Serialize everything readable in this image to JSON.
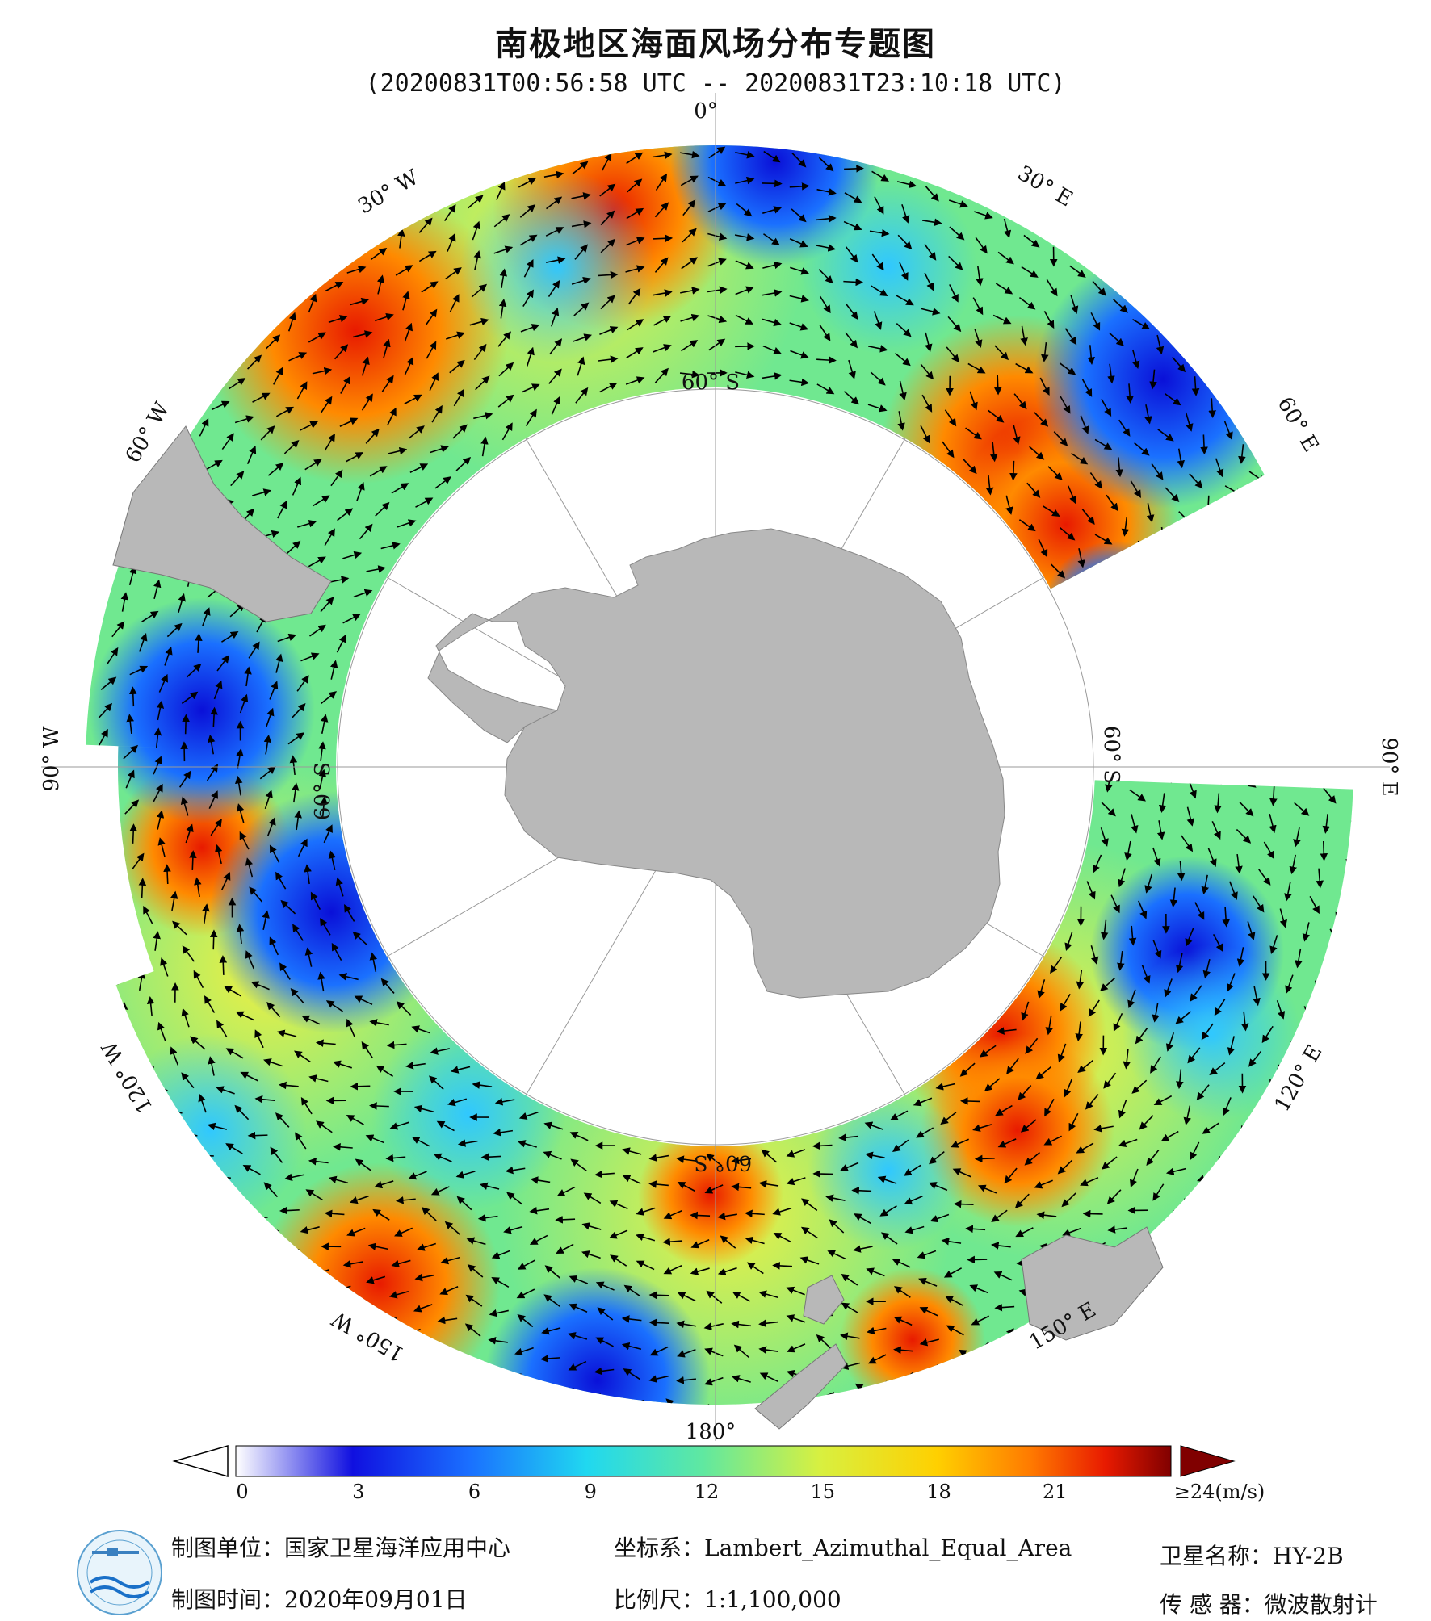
{
  "header": {
    "title": "南极地区海面风场分布专题图",
    "time_range": "(20200831T00:56:58 UTC -- 20200831T23:10:18 UTC)"
  },
  "map": {
    "projection_center": "South Pole",
    "longitude_labels": {
      "lon_0": "0°",
      "lon_30w": "30° W",
      "lon_30e": "30° E",
      "lon_60w": "60° W",
      "lon_60e": "60° E",
      "lon_90w": "90° W",
      "lon_90e": "90° E",
      "lon_120w": "120° W",
      "lon_120e": "120° E",
      "lon_150w": "150° W",
      "lon_150e": "150° E",
      "lon_180": "180°"
    },
    "latitude_labels": {
      "lat_top": "60° S",
      "lat_right": "60° S",
      "lat_left": "60° S",
      "lat_bottom": "60° S"
    },
    "colors": {
      "land": "#b8b8b8",
      "ocean_no_data": "#ffffff",
      "arrow": "#000000",
      "grid": "#9a9a9a"
    }
  },
  "colorbar": {
    "ticks": [
      "0",
      "3",
      "6",
      "9",
      "12",
      "15",
      "18",
      "21",
      "≥24(m/s)"
    ],
    "min": 0,
    "max": 24,
    "unit": "m/s",
    "colors": [
      "#ffffff",
      "#1010e0",
      "#1a70ff",
      "#20d8f0",
      "#60e8a0",
      "#d8f040",
      "#ffd000",
      "#ff7a00",
      "#e81a00",
      "#800000"
    ]
  },
  "footer": {
    "producer": "制图单位：国家卫星海洋应用中心",
    "date": "制图时间：2020年09月01日",
    "coord_system": "坐标系：Lambert_Azimuthal_Equal_Area",
    "scale": "比例尺：1:1,100,000",
    "satellite": "卫星名称：HY-2B",
    "sensor": "传 感 器：微波散射计"
  }
}
